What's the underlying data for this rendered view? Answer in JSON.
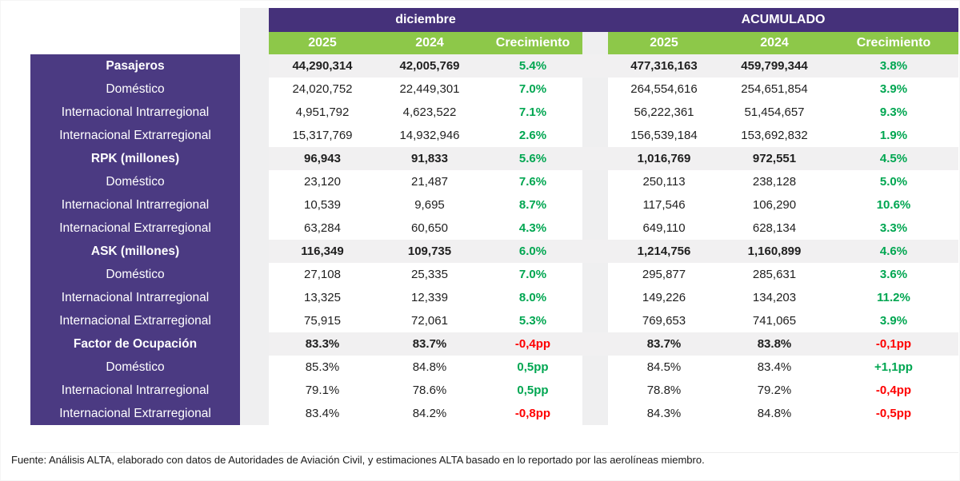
{
  "chart_data": {
    "type": "table",
    "column_groups": [
      {
        "title": "diciembre",
        "columns": [
          "2025",
          "2024",
          "Crecimiento"
        ]
      },
      {
        "title": "ACUMULADO",
        "columns": [
          "2025",
          "2024",
          "Crecimiento"
        ]
      }
    ],
    "rows": [
      {
        "label": "Pasajeros",
        "section": true,
        "d2025": "44,290,314",
        "d2024": "42,005,769",
        "dgrowth": "5.4%",
        "dgc": "green",
        "a2025": "477,316,163",
        "a2024": "459,799,344",
        "agrowth": "3.8%",
        "agc": "green"
      },
      {
        "label": "Doméstico",
        "section": false,
        "d2025": "24,020,752",
        "d2024": "22,449,301",
        "dgrowth": "7.0%",
        "dgc": "green",
        "a2025": "264,554,616",
        "a2024": "254,651,854",
        "agrowth": "3.9%",
        "agc": "green"
      },
      {
        "label": "Internacional Intrarregional",
        "section": false,
        "d2025": "4,951,792",
        "d2024": "4,623,522",
        "dgrowth": "7.1%",
        "dgc": "green",
        "a2025": "56,222,361",
        "a2024": "51,454,657",
        "agrowth": "9.3%",
        "agc": "green"
      },
      {
        "label": "Internacional Extrarregional",
        "section": false,
        "d2025": "15,317,769",
        "d2024": "14,932,946",
        "dgrowth": "2.6%",
        "dgc": "green",
        "a2025": "156,539,184",
        "a2024": "153,692,832",
        "agrowth": "1.9%",
        "agc": "green"
      },
      {
        "label": "RPK (millones)",
        "section": true,
        "d2025": "96,943",
        "d2024": "91,833",
        "dgrowth": "5.6%",
        "dgc": "green",
        "a2025": "1,016,769",
        "a2024": "972,551",
        "agrowth": "4.5%",
        "agc": "green"
      },
      {
        "label": "Doméstico",
        "section": false,
        "d2025": "23,120",
        "d2024": "21,487",
        "dgrowth": "7.6%",
        "dgc": "green",
        "a2025": "250,113",
        "a2024": "238,128",
        "agrowth": "5.0%",
        "agc": "green"
      },
      {
        "label": "Internacional Intrarregional",
        "section": false,
        "d2025": "10,539",
        "d2024": "9,695",
        "dgrowth": "8.7%",
        "dgc": "green",
        "a2025": "117,546",
        "a2024": "106,290",
        "agrowth": "10.6%",
        "agc": "green"
      },
      {
        "label": "Internacional Extrarregional",
        "section": false,
        "d2025": "63,284",
        "d2024": "60,650",
        "dgrowth": "4.3%",
        "dgc": "green",
        "a2025": "649,110",
        "a2024": "628,134",
        "agrowth": "3.3%",
        "agc": "green"
      },
      {
        "label": "ASK (millones)",
        "section": true,
        "d2025": "116,349",
        "d2024": "109,735",
        "dgrowth": "6.0%",
        "dgc": "green",
        "a2025": "1,214,756",
        "a2024": "1,160,899",
        "agrowth": "4.6%",
        "agc": "green"
      },
      {
        "label": "Doméstico",
        "section": false,
        "d2025": "27,108",
        "d2024": "25,335",
        "dgrowth": "7.0%",
        "dgc": "green",
        "a2025": "295,877",
        "a2024": "285,631",
        "agrowth": "3.6%",
        "agc": "green"
      },
      {
        "label": "Internacional Intrarregional",
        "section": false,
        "d2025": "13,325",
        "d2024": "12,339",
        "dgrowth": "8.0%",
        "dgc": "green",
        "a2025": "149,226",
        "a2024": "134,203",
        "agrowth": "11.2%",
        "agc": "green"
      },
      {
        "label": "Internacional Extrarregional",
        "section": false,
        "d2025": "75,915",
        "d2024": "72,061",
        "dgrowth": "5.3%",
        "dgc": "green",
        "a2025": "769,653",
        "a2024": "741,065",
        "agrowth": "3.9%",
        "agc": "green"
      },
      {
        "label": "Factor de Ocupación",
        "section": true,
        "d2025": "83.3%",
        "d2024": "83.7%",
        "dgrowth": "-0,4pp",
        "dgc": "red",
        "a2025": "83.7%",
        "a2024": "83.8%",
        "agrowth": "-0,1pp",
        "agc": "red"
      },
      {
        "label": "Doméstico",
        "section": false,
        "d2025": "85.3%",
        "d2024": "84.8%",
        "dgrowth": "0,5pp",
        "dgc": "green",
        "a2025": "84.5%",
        "a2024": "83.4%",
        "agrowth": "+1,1pp",
        "agc": "green"
      },
      {
        "label": "Internacional Intrarregional",
        "section": false,
        "d2025": "79.1%",
        "d2024": "78.6%",
        "dgrowth": "0,5pp",
        "dgc": "green",
        "a2025": "78.8%",
        "a2024": "79.2%",
        "agrowth": "-0,4pp",
        "agc": "red"
      },
      {
        "label": "Internacional Extrarregional",
        "section": false,
        "d2025": "83.4%",
        "d2024": "84.2%",
        "dgrowth": "-0,8pp",
        "dgc": "red",
        "a2025": "84.3%",
        "a2024": "84.8%",
        "agrowth": "-0,5pp",
        "agc": "red"
      }
    ],
    "colors": {
      "header_purple": "#45317A",
      "label_purple": "#4B3A82",
      "header_green": "#8DC849",
      "growth_green": "#00A651",
      "growth_red": "#FE0000",
      "section_row_bg": "#F1F0F1"
    }
  },
  "footer": {
    "source_note": "Fuente: Análisis ALTA, elaborado con datos de Autoridades de Aviación Civil,  y estimaciones ALTA basado en lo reportado por las aerolíneas miembro."
  }
}
